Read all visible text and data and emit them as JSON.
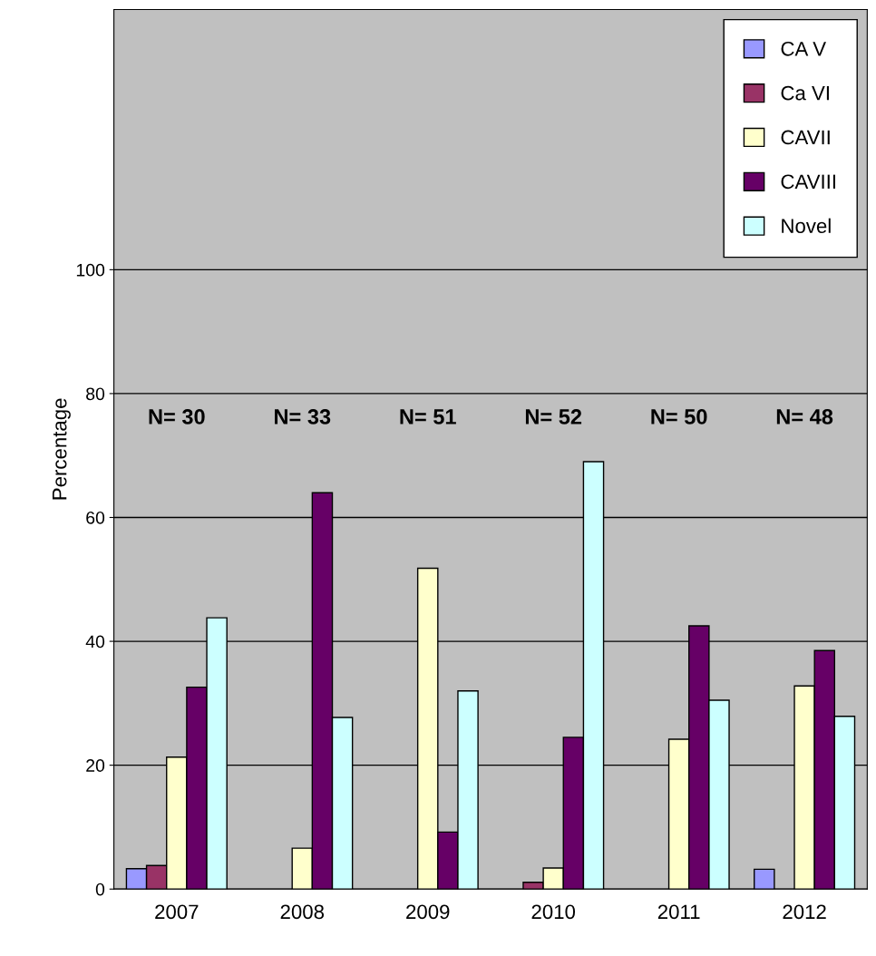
{
  "chart_data": {
    "type": "bar",
    "ylabel": "Percentage",
    "categories": [
      "2007",
      "2008",
      "2009",
      "2010",
      "2011",
      "2012"
    ],
    "series": [
      {
        "name": "CA V",
        "color": "#9999ff",
        "values": [
          3.3,
          null,
          null,
          null,
          null,
          3.2
        ]
      },
      {
        "name": "Ca VI",
        "color": "#993366",
        "values": [
          3.8,
          null,
          null,
          1.1,
          null,
          null
        ]
      },
      {
        "name": "CAVII",
        "color": "#ffffcc",
        "values": [
          21.3,
          6.6,
          51.8,
          3.4,
          24.2,
          32.8
        ]
      },
      {
        "name": "CAVIII",
        "color": "#660066",
        "values": [
          32.6,
          64,
          9.2,
          24.5,
          42.5,
          38.5
        ]
      },
      {
        "name": "Novel",
        "color": "#ccffff",
        "values": [
          43.8,
          27.7,
          32,
          69,
          30.5,
          27.9
        ]
      }
    ],
    "ylim": [
      0,
      142
    ],
    "yticks": [
      0,
      20,
      40,
      60,
      80,
      100
    ],
    "grid": "y",
    "legend": "top right",
    "annotations": [
      "N= 30",
      "N= 33",
      "N= 51",
      "N= 52",
      "N= 50",
      "N= 48"
    ]
  }
}
